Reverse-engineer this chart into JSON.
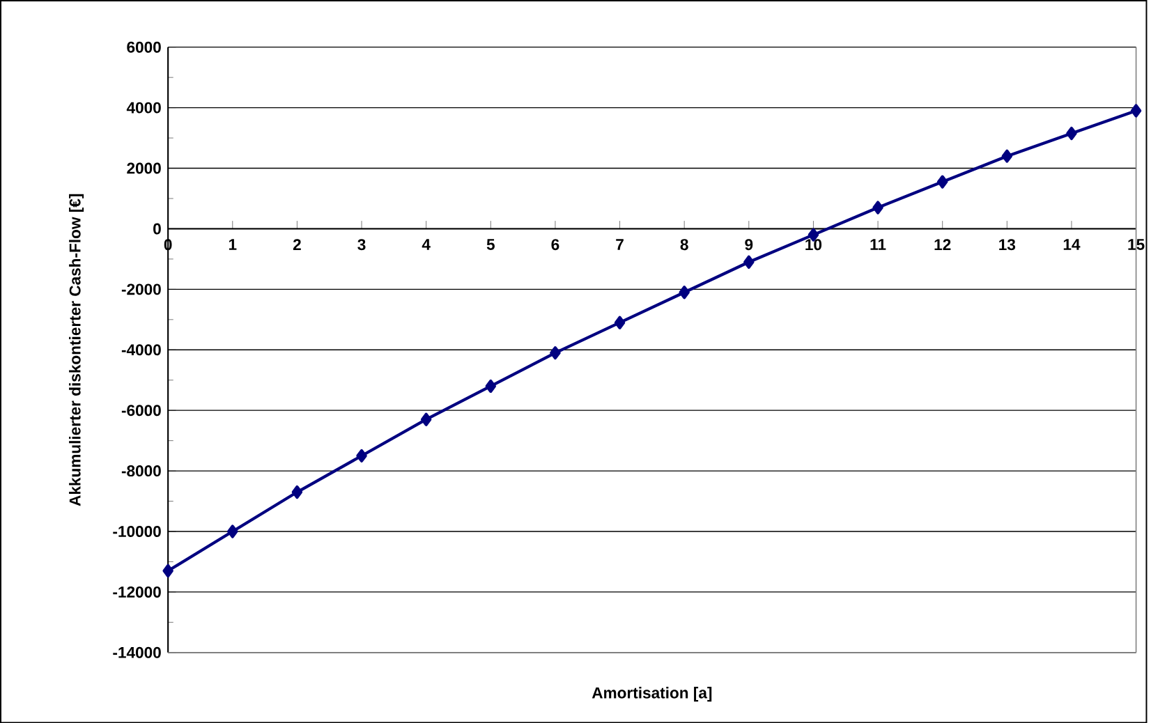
{
  "chart_data": {
    "type": "line",
    "xlabel": "Amortisation [a]",
    "ylabel": "Akkumulierter diskontierter Cash-Flow [€]",
    "x": [
      0,
      1,
      2,
      3,
      4,
      5,
      6,
      7,
      8,
      9,
      10,
      11,
      12,
      13,
      14,
      15
    ],
    "series": [
      {
        "color": "#000080",
        "values": [
          -11300,
          -10000,
          -8700,
          -7500,
          -6300,
          -5200,
          -4100,
          -3100,
          -2100,
          -1100,
          -200,
          700,
          1550,
          2400,
          3150,
          3900
        ]
      }
    ],
    "xlim": [
      0,
      15
    ],
    "ylim": [
      -14000,
      6000
    ],
    "xticks": [
      0,
      1,
      2,
      3,
      4,
      5,
      6,
      7,
      8,
      9,
      10,
      11,
      12,
      13,
      14,
      15
    ],
    "yticks": [
      -14000,
      -12000,
      -10000,
      -8000,
      -6000,
      -4000,
      -2000,
      0,
      2000,
      4000,
      6000
    ],
    "grid": "y",
    "marker": "diamond",
    "line_style": "solid"
  }
}
